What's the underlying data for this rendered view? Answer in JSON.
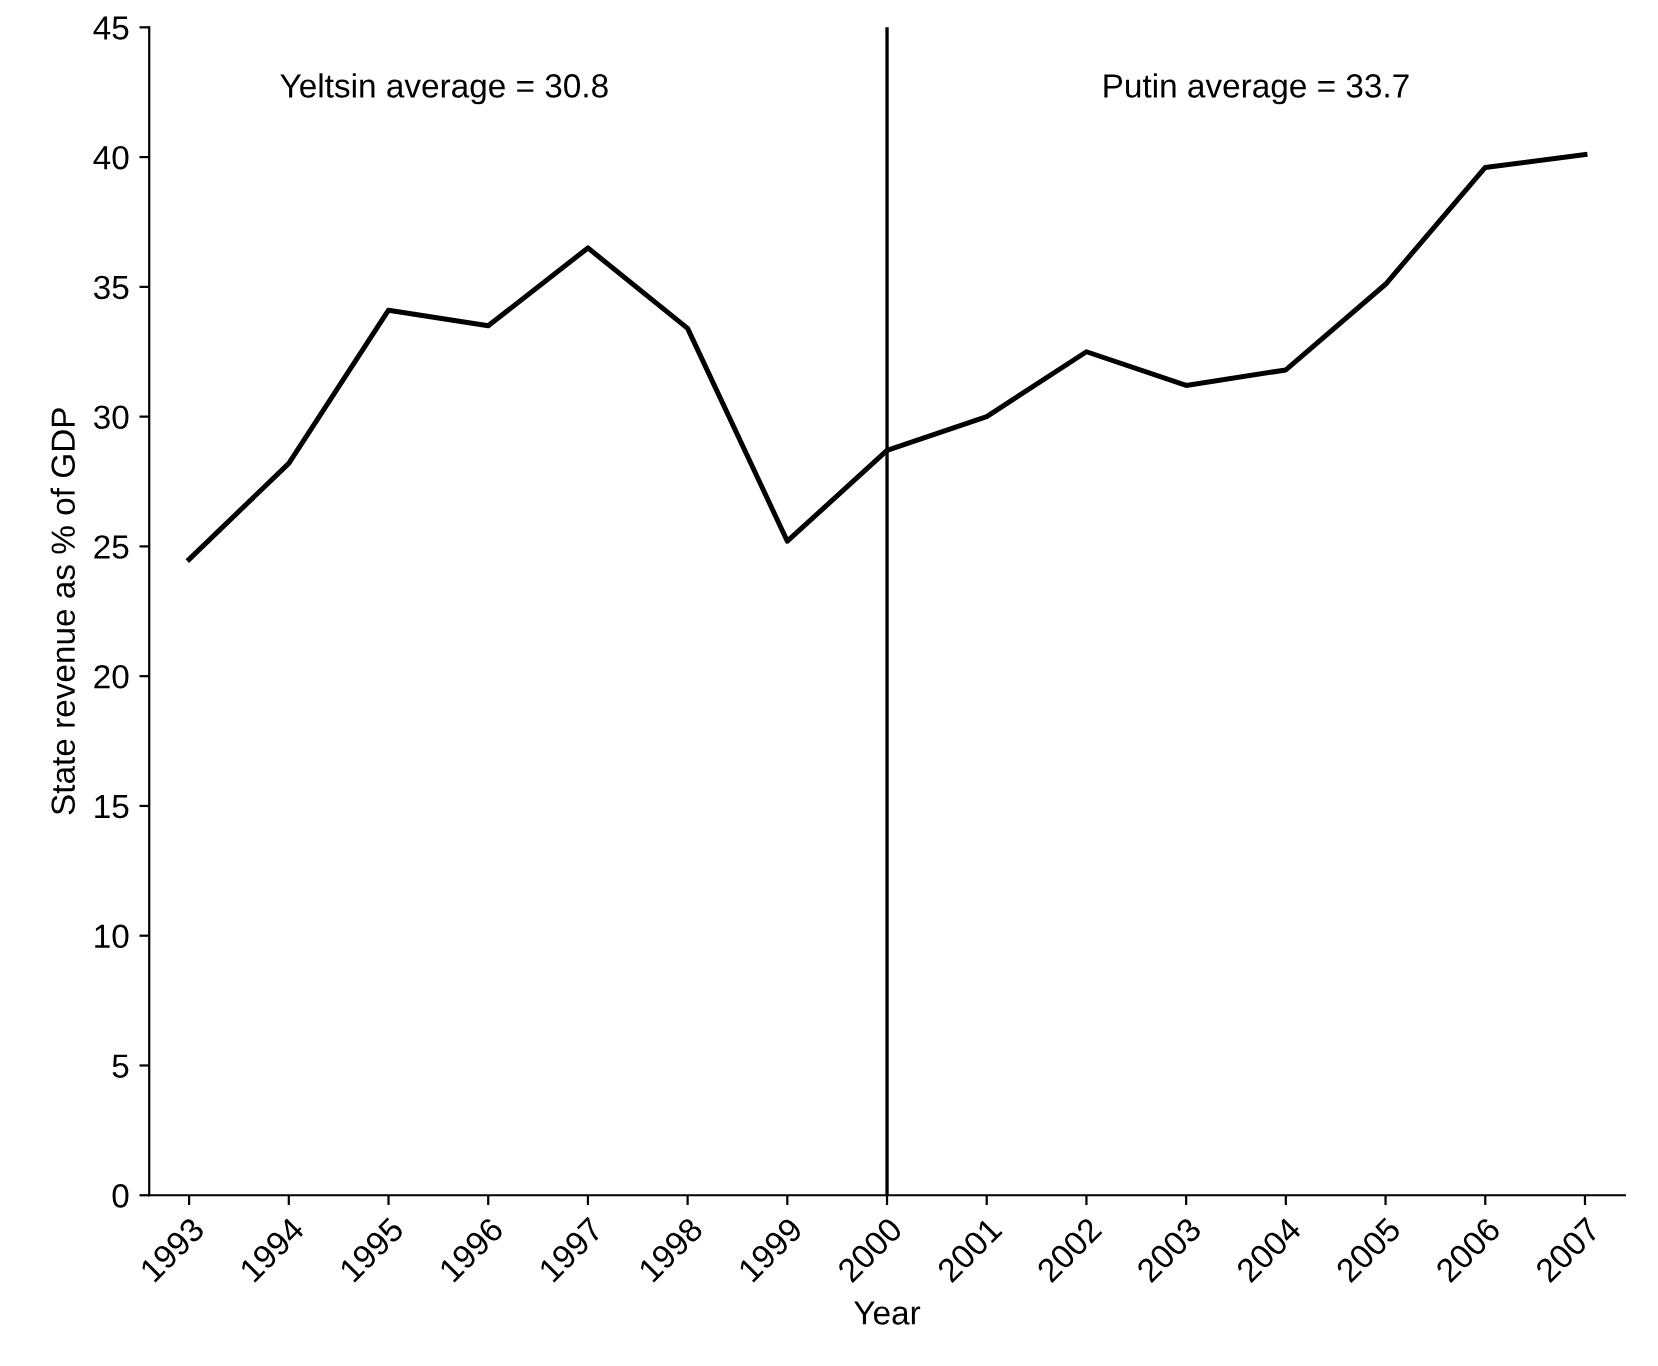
{
  "chart_data": {
    "type": "line",
    "xlabel": "Year",
    "ylabel": "State revenue as % of GDP",
    "categories": [
      "1993",
      "1994",
      "1995",
      "1996",
      "1997",
      "1998",
      "1999",
      "2000",
      "2001",
      "2002",
      "2003",
      "2004",
      "2005",
      "2006",
      "2007"
    ],
    "series": [
      {
        "color": "#000000",
        "values": [
          24.5,
          28.2,
          34.1,
          33.5,
          36.5,
          33.4,
          25.2,
          28.7,
          30.0,
          32.5,
          31.2,
          31.8,
          35.1,
          39.6,
          40.1
        ]
      }
    ],
    "ylim": [
      0,
      45
    ],
    "yticks": [
      0,
      5,
      10,
      15,
      20,
      25,
      30,
      35,
      40,
      45
    ],
    "ref_lines": [
      {
        "axis": "x",
        "value": "2000",
        "color": "#000000"
      }
    ],
    "annotations": [
      "Yeltsin average = 30.8",
      "Putin average = 33.7"
    ],
    "grid": false,
    "legend": false,
    "marker": "none",
    "line_style": "solid"
  }
}
